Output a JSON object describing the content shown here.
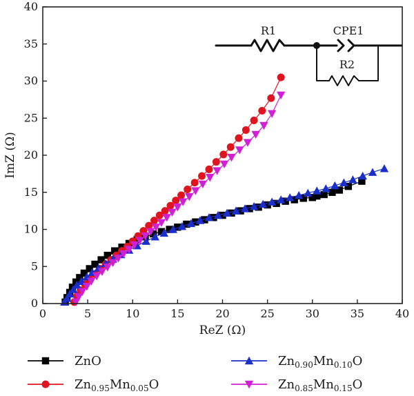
{
  "chart_data": {
    "type": "scatter",
    "xlabel": "ReZ (Ω)",
    "ylabel": "ImZ (Ω)",
    "xlim": [
      0,
      40
    ],
    "ylim": [
      0,
      40
    ],
    "xticks": [
      0,
      5,
      10,
      15,
      20,
      25,
      30,
      35,
      40
    ],
    "yticks": [
      0,
      5,
      10,
      15,
      20,
      25,
      30,
      35,
      40
    ],
    "grid": false,
    "legend_position": "bottom",
    "inset": {
      "type": "equivalent-circuit",
      "labels": [
        "R1",
        "CPE1",
        "R2"
      ]
    },
    "series": [
      {
        "name": "ZnO",
        "legend": {
          "base": "ZnO",
          "parts": []
        },
        "marker": "square",
        "color": "#000000",
        "x": [
          2.5,
          2.7,
          3.0,
          3.3,
          3.7,
          4.1,
          4.6,
          5.2,
          5.8,
          6.5,
          7.2,
          8.0,
          8.8,
          9.6,
          10.5,
          11.4,
          12.3,
          13.2,
          14.1,
          15.0,
          16.0,
          17.0,
          18.0,
          19.0,
          20.0,
          21.0,
          22.0,
          23.0,
          24.0,
          25.0,
          26.0,
          27.0,
          28.0,
          29.0,
          30.0,
          30.5,
          31.3,
          32.2,
          33.0,
          34.0,
          35.5
        ],
        "y": [
          0.2,
          0.8,
          1.5,
          2.2,
          2.9,
          3.5,
          4.1,
          4.7,
          5.3,
          5.9,
          6.5,
          7.1,
          7.6,
          8.1,
          8.6,
          9.0,
          9.4,
          9.7,
          10.0,
          10.3,
          10.7,
          11.0,
          11.3,
          11.6,
          11.9,
          12.2,
          12.5,
          12.8,
          13.0,
          13.3,
          13.5,
          13.8,
          14.0,
          14.2,
          14.3,
          14.5,
          14.7,
          15.0,
          15.3,
          15.8,
          16.5
        ]
      },
      {
        "name": "Zn0.95Mn0.05O",
        "legend": {
          "base": "Zn",
          "parts": [
            [
              "0.95",
              "Mn"
            ],
            [
              "0.05",
              "O"
            ]
          ]
        },
        "marker": "circle",
        "color": "#e0141e",
        "x": [
          3.5,
          3.8,
          4.2,
          4.7,
          5.2,
          5.8,
          6.4,
          7.0,
          7.6,
          8.2,
          8.8,
          9.4,
          10.0,
          10.6,
          11.2,
          11.8,
          12.4,
          13.0,
          13.6,
          14.2,
          14.8,
          15.4,
          16.1,
          16.9,
          17.7,
          18.5,
          19.3,
          20.1,
          20.9,
          21.8,
          22.6,
          23.5,
          24.4,
          25.4,
          26.5
        ],
        "y": [
          0.2,
          1.0,
          1.8,
          2.6,
          3.3,
          4.0,
          4.7,
          5.3,
          5.9,
          6.5,
          7.1,
          7.7,
          8.4,
          9.1,
          9.8,
          10.5,
          11.2,
          11.9,
          12.5,
          13.2,
          13.9,
          14.6,
          15.4,
          16.3,
          17.2,
          18.1,
          19.1,
          20.1,
          21.1,
          22.3,
          23.4,
          24.7,
          26.0,
          27.7,
          30.5
        ]
      },
      {
        "name": "Zn0.90Mn0.10O",
        "legend": {
          "base": "Zn",
          "parts": [
            [
              "0.90",
              "Mn"
            ],
            [
              "0.10",
              "O"
            ]
          ]
        },
        "marker": "triangle-up",
        "color": "#1a2fc9",
        "x": [
          2.4,
          2.7,
          3.0,
          3.4,
          3.8,
          4.3,
          4.9,
          5.5,
          6.2,
          7.0,
          7.8,
          8.7,
          9.6,
          10.5,
          11.5,
          12.5,
          13.5,
          14.5,
          15.5,
          16.5,
          17.5,
          18.5,
          19.5,
          20.5,
          21.5,
          22.5,
          23.5,
          24.5,
          25.5,
          26.5,
          27.5,
          28.5,
          29.5,
          30.5,
          31.5,
          32.5,
          33.5,
          34.5,
          35.6,
          36.7,
          38.0
        ],
        "y": [
          0.2,
          0.7,
          1.3,
          1.9,
          2.5,
          3.0,
          3.6,
          4.2,
          4.8,
          5.4,
          6.0,
          6.6,
          7.2,
          7.8,
          8.4,
          9.0,
          9.5,
          10.0,
          10.4,
          10.8,
          11.2,
          11.6,
          11.9,
          12.2,
          12.5,
          12.8,
          13.1,
          13.4,
          13.7,
          14.0,
          14.3,
          14.6,
          14.9,
          15.2,
          15.5,
          15.9,
          16.3,
          16.7,
          17.2,
          17.7,
          18.2
        ]
      },
      {
        "name": "Zn0.85Mn0.15O",
        "legend": {
          "base": "Zn",
          "parts": [
            [
              "0.85",
              "Mn"
            ],
            [
              "0.15",
              "O"
            ]
          ]
        },
        "marker": "triangle-down",
        "color": "#d020d6",
        "x": [
          3.7,
          4.0,
          4.4,
          4.9,
          5.4,
          6.0,
          6.6,
          7.2,
          7.8,
          8.4,
          9.0,
          9.6,
          10.2,
          10.8,
          11.4,
          12.0,
          12.6,
          13.2,
          13.8,
          14.4,
          15.0,
          15.6,
          16.3,
          17.0,
          17.8,
          18.6,
          19.4,
          20.2,
          21.0,
          21.9,
          22.8,
          23.7,
          24.6,
          25.5,
          26.5
        ],
        "y": [
          0.2,
          0.9,
          1.6,
          2.3,
          3.0,
          3.7,
          4.3,
          4.9,
          5.5,
          6.1,
          6.7,
          7.3,
          7.9,
          8.5,
          9.1,
          9.7,
          10.3,
          10.9,
          11.6,
          12.3,
          13.0,
          13.7,
          14.4,
          15.2,
          16.1,
          17.0,
          17.9,
          18.8,
          19.7,
          20.7,
          21.7,
          22.8,
          24.0,
          25.6,
          28.1
        ]
      }
    ]
  }
}
